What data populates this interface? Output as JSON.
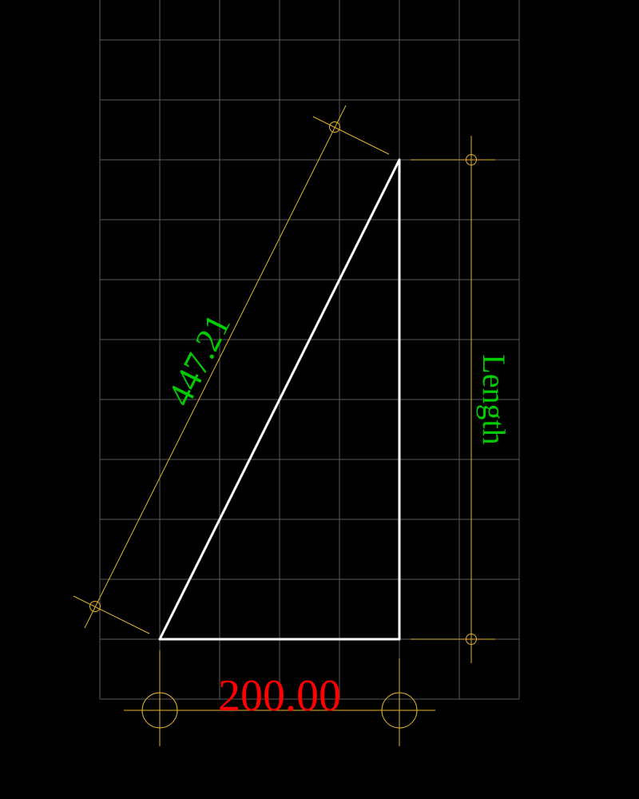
{
  "drawing": {
    "background": "#000000",
    "colors": {
      "grid": "#5a5a5a",
      "geometry": "#ffffff",
      "dimension_lines": "#e6b422",
      "label_green": "#00cc00",
      "label_red": "#ff0000"
    }
  },
  "dimensions": {
    "hypotenuse_value": "447.21",
    "height_label": "Length",
    "base_value": "200.00"
  }
}
